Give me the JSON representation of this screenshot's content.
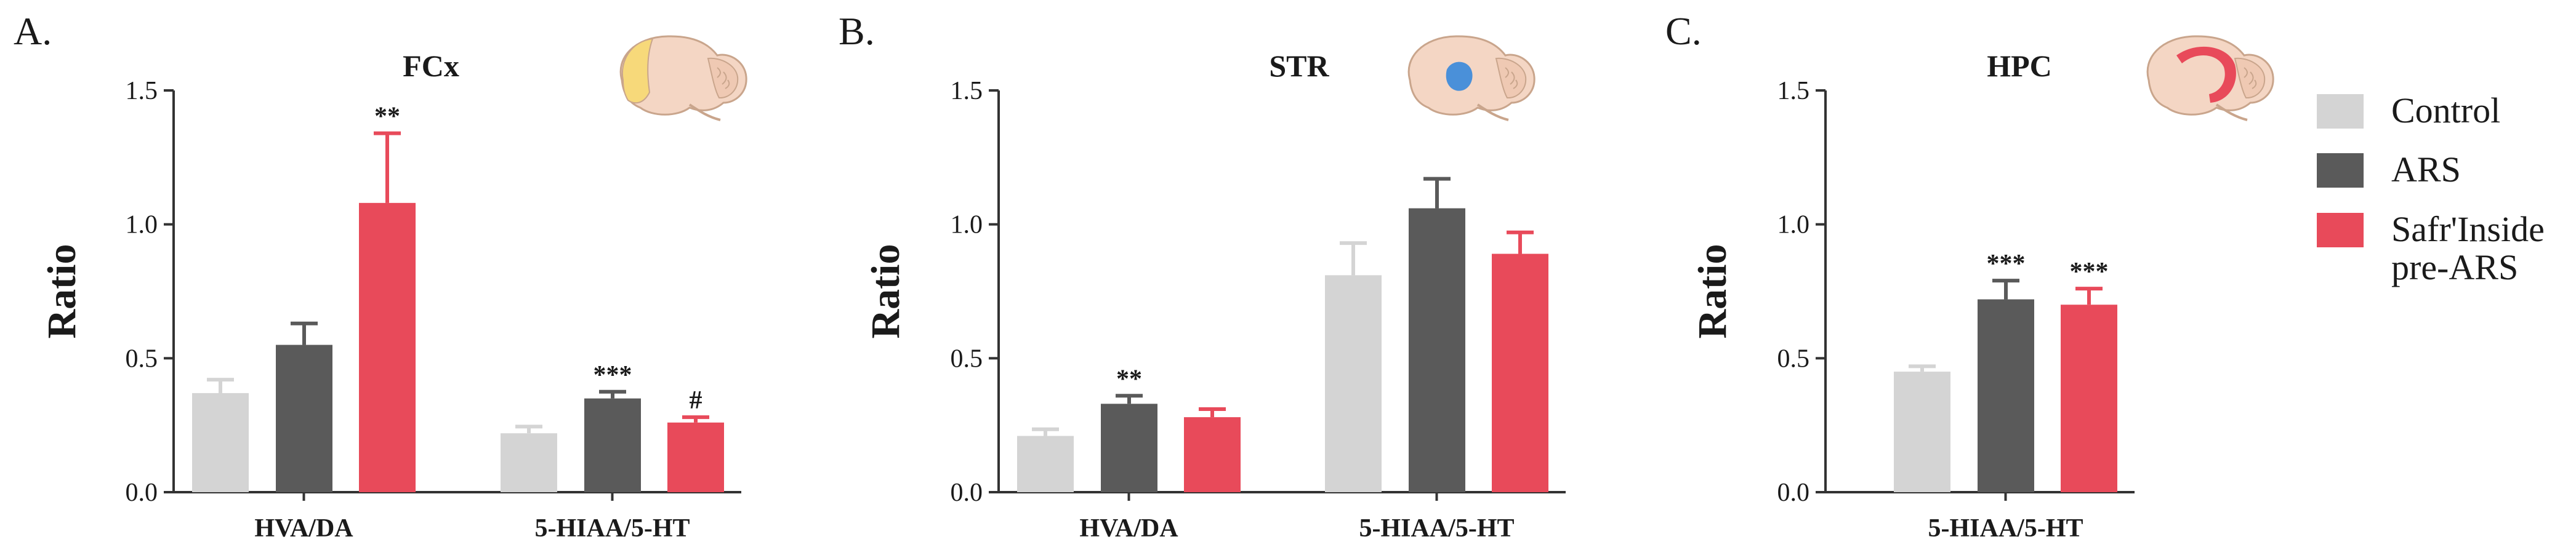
{
  "colors": {
    "Control": "#d4d4d4",
    "ARS": "#5a5a5a",
    "Safr'Inside pre-ARS": "#e84a5a"
  },
  "legend": {
    "items": [
      {
        "key": "Control",
        "lines": [
          "Control"
        ]
      },
      {
        "key": "ARS",
        "lines": [
          "ARS"
        ]
      },
      {
        "key": "Safr'Inside pre-ARS",
        "lines": [
          "Safr'Inside",
          "pre-ARS"
        ]
      }
    ],
    "placement": "right"
  },
  "chart_data": [
    {
      "type": "bar",
      "panel_label": "A.",
      "region": "FCx",
      "brain_icon": "brain-frontal-cortex-icon",
      "highlight_color": "#f7d97a",
      "ylabel": "Ratio",
      "ylim": [
        0,
        1.5
      ],
      "yticks": [
        "0.0",
        "0.5",
        "1.0",
        "1.5"
      ],
      "categories": [
        "HVA/DA",
        "5-HIAA/5-HT"
      ],
      "series": [
        {
          "name": "Control",
          "values": [
            0.37,
            0.22
          ],
          "errors": [
            0.05,
            0.025
          ],
          "sig": [
            "",
            ""
          ]
        },
        {
          "name": "ARS",
          "values": [
            0.55,
            0.35
          ],
          "errors": [
            0.08,
            0.025
          ],
          "sig": [
            "",
            "***"
          ]
        },
        {
          "name": "Safr'Inside pre-ARS",
          "values": [
            1.08,
            0.26
          ],
          "errors": [
            0.26,
            0.02
          ],
          "sig": [
            "**",
            "#"
          ]
        }
      ]
    },
    {
      "type": "bar",
      "panel_label": "B.",
      "region": "STR",
      "brain_icon": "brain-striatum-icon",
      "highlight_color": "#4a90d9",
      "ylabel": "Ratio",
      "ylim": [
        0,
        1.5
      ],
      "yticks": [
        "0.0",
        "0.5",
        "1.0",
        "1.5"
      ],
      "categories": [
        "HVA/DA",
        "5-HIAA/5-HT"
      ],
      "series": [
        {
          "name": "Control",
          "values": [
            0.21,
            0.81
          ],
          "errors": [
            0.025,
            0.12
          ],
          "sig": [
            "",
            ""
          ]
        },
        {
          "name": "ARS",
          "values": [
            0.33,
            1.06
          ],
          "errors": [
            0.03,
            0.11
          ],
          "sig": [
            "**",
            ""
          ]
        },
        {
          "name": "Safr'Inside pre-ARS",
          "values": [
            0.28,
            0.89
          ],
          "errors": [
            0.03,
            0.08
          ],
          "sig": [
            "",
            ""
          ]
        }
      ]
    },
    {
      "type": "bar",
      "panel_label": "C.",
      "region": "HPC",
      "brain_icon": "brain-hippocampus-icon",
      "highlight_color": "#e84a5a",
      "ylabel": "Ratio",
      "ylim": [
        0,
        1.5
      ],
      "yticks": [
        "0.0",
        "0.5",
        "1.0",
        "1.5"
      ],
      "categories": [
        "5-HIAA/5-HT"
      ],
      "series": [
        {
          "name": "Control",
          "values": [
            0.45
          ],
          "errors": [
            0.02
          ],
          "sig": [
            ""
          ]
        },
        {
          "name": "ARS",
          "values": [
            0.72
          ],
          "errors": [
            0.07
          ],
          "sig": [
            "***"
          ]
        },
        {
          "name": "Safr'Inside pre-ARS",
          "values": [
            0.7
          ],
          "errors": [
            0.06
          ],
          "sig": [
            "***"
          ]
        }
      ]
    }
  ]
}
